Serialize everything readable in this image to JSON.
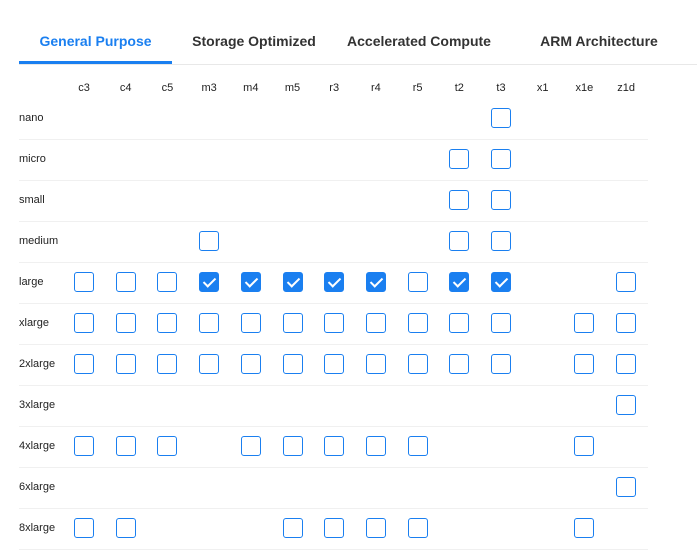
{
  "tabs": [
    {
      "label": "General Purpose",
      "active": true
    },
    {
      "label": "Storage Optimized"
    },
    {
      "label": "Accelerated Compute"
    },
    {
      "label": "ARM Architecture"
    }
  ],
  "accent_color": "#1a7ff0",
  "columns": [
    "c3",
    "c4",
    "c5",
    "m3",
    "m4",
    "m5",
    "r3",
    "r4",
    "r5",
    "t2",
    "t3",
    "x1",
    "x1e",
    "z1d"
  ],
  "rows": [
    {
      "label": "nano",
      "cells": [
        null,
        null,
        null,
        null,
        null,
        null,
        null,
        null,
        null,
        null,
        false,
        null,
        null,
        null
      ]
    },
    {
      "label": "micro",
      "cells": [
        null,
        null,
        null,
        null,
        null,
        null,
        null,
        null,
        null,
        false,
        false,
        null,
        null,
        null
      ]
    },
    {
      "label": "small",
      "cells": [
        null,
        null,
        null,
        null,
        null,
        null,
        null,
        null,
        null,
        false,
        false,
        null,
        null,
        null
      ]
    },
    {
      "label": "medium",
      "cells": [
        null,
        null,
        null,
        false,
        null,
        null,
        null,
        null,
        null,
        false,
        false,
        null,
        null,
        null
      ]
    },
    {
      "label": "large",
      "cells": [
        false,
        false,
        false,
        true,
        true,
        true,
        true,
        true,
        false,
        true,
        true,
        null,
        null,
        false
      ]
    },
    {
      "label": "xlarge",
      "cells": [
        false,
        false,
        false,
        false,
        false,
        false,
        false,
        false,
        false,
        false,
        false,
        null,
        false,
        false
      ]
    },
    {
      "label": "2xlarge",
      "cells": [
        false,
        false,
        false,
        false,
        false,
        false,
        false,
        false,
        false,
        false,
        false,
        null,
        false,
        false
      ]
    },
    {
      "label": "3xlarge",
      "cells": [
        null,
        null,
        null,
        null,
        null,
        null,
        null,
        null,
        null,
        null,
        null,
        null,
        null,
        false
      ]
    },
    {
      "label": "4xlarge",
      "cells": [
        false,
        false,
        false,
        null,
        false,
        false,
        false,
        false,
        false,
        null,
        null,
        null,
        false,
        null
      ]
    },
    {
      "label": "6xlarge",
      "cells": [
        null,
        null,
        null,
        null,
        null,
        null,
        null,
        null,
        null,
        null,
        null,
        null,
        null,
        false
      ]
    },
    {
      "label": "8xlarge",
      "cells": [
        false,
        false,
        null,
        null,
        null,
        false,
        false,
        false,
        false,
        null,
        null,
        null,
        false,
        null
      ]
    }
  ]
}
